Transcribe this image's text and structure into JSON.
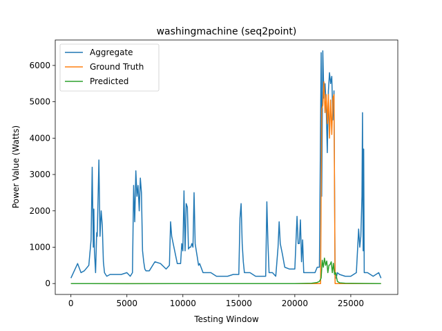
{
  "chart_data": {
    "type": "line",
    "title": "washingmachine (seq2point)",
    "xlabel": "Testing Window",
    "ylabel": "Power Value (Watts)",
    "xlim": [
      -1400,
      29200
    ],
    "ylim": [
      -300,
      6700
    ],
    "xticks": [
      0,
      5000,
      10000,
      15000,
      20000,
      25000
    ],
    "yticks": [
      0,
      1000,
      2000,
      3000,
      4000,
      5000,
      6000
    ],
    "grid": false,
    "legend_position": "upper-left",
    "series": [
      {
        "name": "Aggregate",
        "color": "#1f77b4",
        "x": [
          0,
          600,
          900,
          1200,
          1600,
          1800,
          1900,
          2000,
          2050,
          2100,
          2200,
          2300,
          2350,
          2500,
          2600,
          2700,
          2800,
          2900,
          3000,
          3100,
          3200,
          3500,
          4000,
          4500,
          5000,
          5300,
          5500,
          5600,
          5700,
          5800,
          5900,
          6000,
          6100,
          6200,
          6300,
          6400,
          6500,
          6600,
          6700,
          7000,
          7500,
          8000,
          8500,
          8800,
          8900,
          9000,
          9500,
          9800,
          9900,
          10000,
          10100,
          10200,
          10300,
          10400,
          10500,
          10600,
          10700,
          10800,
          10900,
          11000,
          11100,
          11200,
          11300,
          11400,
          11500,
          11800,
          12000,
          12500,
          13000,
          13500,
          14000,
          14500,
          15000,
          15100,
          15200,
          15300,
          15400,
          15500,
          16000,
          16500,
          17000,
          17400,
          17500,
          17600,
          17700,
          18000,
          18300,
          18500,
          18600,
          18700,
          18900,
          19100,
          19500,
          20000,
          20200,
          20300,
          20400,
          20500,
          20600,
          20700,
          20800,
          21000,
          21500,
          21800,
          22000,
          22200,
          22350,
          22400,
          22500,
          22600,
          22700,
          22800,
          22900,
          23000,
          23100,
          23200,
          23300,
          23400,
          23500,
          23600,
          23700,
          23800,
          24000,
          24500,
          25000,
          25500,
          25700,
          25800,
          25900,
          26000,
          26050,
          26100,
          26150,
          26200,
          26300,
          26500,
          27000,
          27500,
          27700
        ],
        "y": [
          150,
          550,
          300,
          350,
          500,
          1200,
          3200,
          1000,
          2050,
          900,
          300,
          1400,
          1300,
          3400,
          1300,
          2000,
          1600,
          600,
          300,
          250,
          200,
          250,
          250,
          250,
          300,
          200,
          300,
          2700,
          1700,
          3100,
          2400,
          2700,
          2000,
          2900,
          2500,
          900,
          600,
          400,
          350,
          350,
          600,
          550,
          400,
          500,
          1700,
          1300,
          550,
          550,
          1100,
          900,
          2550,
          900,
          2200,
          2100,
          950,
          1000,
          1000,
          1100,
          1000,
          2500,
          1100,
          900,
          700,
          500,
          550,
          300,
          300,
          300,
          200,
          200,
          200,
          250,
          250,
          1800,
          2200,
          1100,
          600,
          300,
          300,
          200,
          200,
          200,
          2250,
          1100,
          300,
          300,
          200,
          1000,
          1700,
          1100,
          800,
          450,
          400,
          400,
          1850,
          1100,
          1100,
          1750,
          600,
          1200,
          300,
          300,
          300,
          300,
          450,
          450,
          6350,
          2400,
          6400,
          5100,
          5500,
          4900,
          3600,
          5300,
          5800,
          5500,
          5700,
          4500,
          5300,
          150,
          150,
          300,
          250,
          200,
          200,
          300,
          1500,
          1000,
          1300,
          2400,
          4700,
          900,
          3700,
          300,
          300,
          300,
          200,
          300,
          150
        ]
      },
      {
        "name": "Ground Truth",
        "color": "#ff7f0e",
        "x": [
          0,
          22000,
          22300,
          22400,
          22500,
          22600,
          22700,
          22800,
          22900,
          23000,
          23100,
          23200,
          23300,
          23400,
          23500,
          23600,
          23700,
          24000,
          27700
        ],
        "y": [
          0,
          0,
          0,
          4800,
          4900,
          5550,
          4700,
          5200,
          4400,
          5200,
          4000,
          5050,
          4100,
          5100,
          5200,
          0,
          0,
          0,
          0
        ]
      },
      {
        "name": "Predicted",
        "color": "#2ca02c",
        "x": [
          0,
          5000,
          10000,
          15000,
          20000,
          21500,
          22000,
          22200,
          22350,
          22450,
          22550,
          22650,
          22750,
          22850,
          22950,
          23050,
          23150,
          23250,
          23350,
          23450,
          23550,
          23650,
          23800,
          24000,
          24500,
          25000,
          27700
        ],
        "y": [
          0,
          -5,
          0,
          0,
          0,
          10,
          30,
          60,
          150,
          640,
          450,
          700,
          500,
          620,
          300,
          500,
          520,
          600,
          300,
          560,
          250,
          300,
          60,
          20,
          10,
          5,
          0
        ]
      }
    ]
  }
}
